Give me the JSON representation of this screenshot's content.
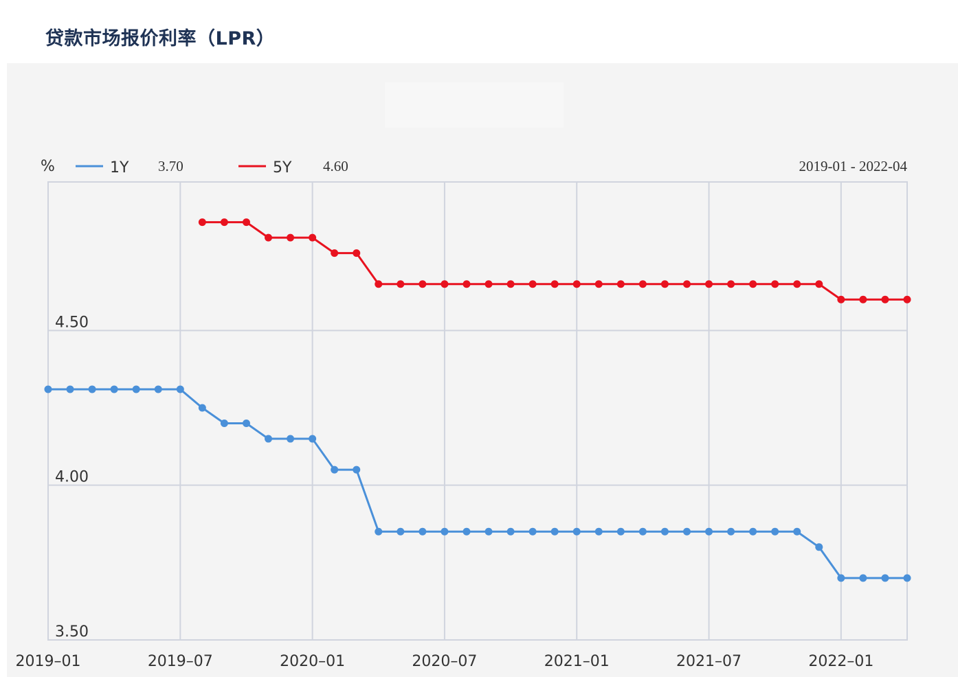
{
  "title": "贷款市场报价利率（LPR）",
  "chart_data": {
    "type": "line",
    "unit_label": "%",
    "date_range": "2019-01 - 2022-04",
    "x": [
      "2019-01",
      "2019-02",
      "2019-03",
      "2019-04",
      "2019-05",
      "2019-06",
      "2019-07",
      "2019-08",
      "2019-09",
      "2019-10",
      "2019-11",
      "2019-12",
      "2020-01",
      "2020-02",
      "2020-03",
      "2020-04",
      "2020-05",
      "2020-06",
      "2020-07",
      "2020-08",
      "2020-09",
      "2020-10",
      "2020-11",
      "2020-12",
      "2021-01",
      "2021-02",
      "2021-03",
      "2021-04",
      "2021-05",
      "2021-06",
      "2021-07",
      "2021-08",
      "2021-09",
      "2021-10",
      "2021-11",
      "2021-12",
      "2022-01",
      "2022-02",
      "2022-03",
      "2022-04"
    ],
    "x_tick_labels": [
      "2019–01",
      "2019–07",
      "2020–01",
      "2020–07",
      "2021–01",
      "2021–07",
      "2022–01"
    ],
    "y_tick_labels": [
      "4.50",
      "4.00",
      "3.50"
    ],
    "y_ticks": [
      4.5,
      4.0,
      3.5
    ],
    "ylim": [
      3.5,
      4.98
    ],
    "grid": true,
    "series": [
      {
        "name": "1Y",
        "latest_label": "3.70",
        "color": "#4a90d9",
        "values": [
          4.31,
          4.31,
          4.31,
          4.31,
          4.31,
          4.31,
          4.31,
          4.25,
          4.2,
          4.2,
          4.15,
          4.15,
          4.15,
          4.05,
          4.05,
          3.85,
          3.85,
          3.85,
          3.85,
          3.85,
          3.85,
          3.85,
          3.85,
          3.85,
          3.85,
          3.85,
          3.85,
          3.85,
          3.85,
          3.85,
          3.85,
          3.85,
          3.85,
          3.85,
          3.85,
          3.8,
          3.7,
          3.7,
          3.7,
          3.7
        ]
      },
      {
        "name": "5Y",
        "latest_label": "4.60",
        "color": "#e8121f",
        "values": [
          null,
          null,
          null,
          null,
          null,
          null,
          null,
          4.85,
          4.85,
          4.85,
          4.8,
          4.8,
          4.8,
          4.75,
          4.75,
          4.65,
          4.65,
          4.65,
          4.65,
          4.65,
          4.65,
          4.65,
          4.65,
          4.65,
          4.65,
          4.65,
          4.65,
          4.65,
          4.65,
          4.65,
          4.65,
          4.65,
          4.65,
          4.65,
          4.65,
          4.65,
          4.6,
          4.6,
          4.6,
          4.6
        ]
      }
    ]
  }
}
